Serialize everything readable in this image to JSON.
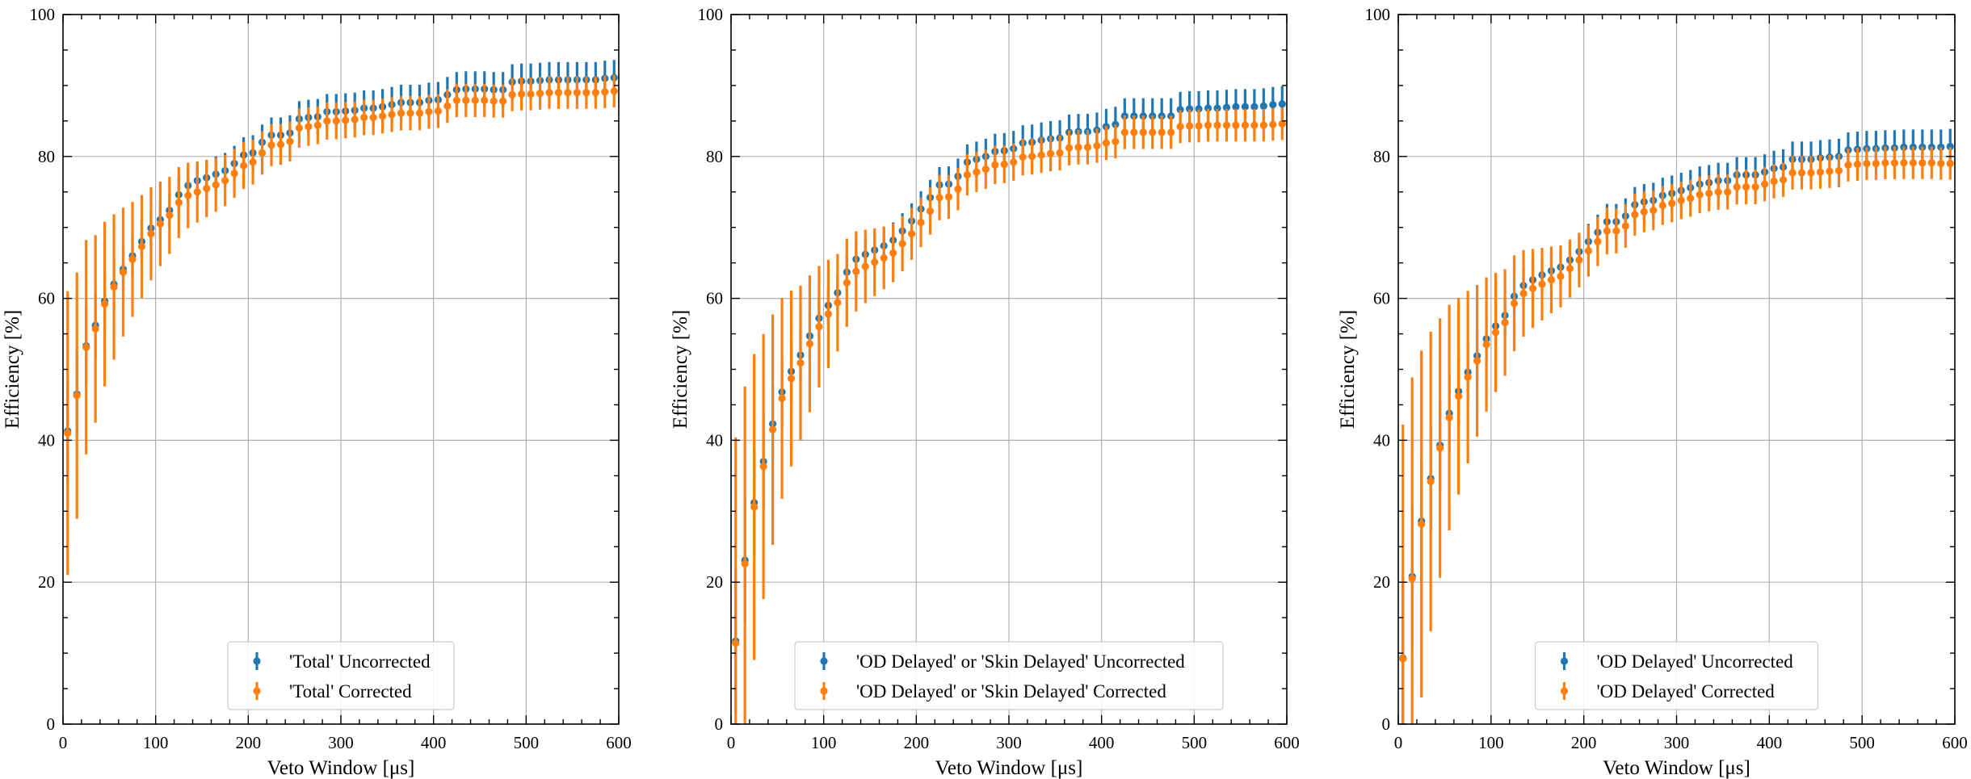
{
  "chart_data": [
    {
      "type": "scatter",
      "xlabel": "Veto Window [μs]",
      "ylabel": "Efficiency [%]",
      "xlim": [
        0,
        600
      ],
      "ylim": [
        0,
        100
      ],
      "xticks": [
        0,
        100,
        200,
        300,
        400,
        500,
        600
      ],
      "yticks": [
        0,
        20,
        40,
        60,
        80,
        100
      ],
      "grid": true,
      "legend_position": "bottom-center",
      "x": [
        5,
        15,
        25,
        35,
        45,
        55,
        65,
        75,
        85,
        95,
        105,
        115,
        125,
        135,
        145,
        155,
        165,
        175,
        185,
        195,
        205,
        215,
        225,
        235,
        245,
        255,
        265,
        275,
        285,
        295,
        305,
        315,
        325,
        335,
        345,
        355,
        365,
        375,
        385,
        395,
        405,
        415,
        425,
        435,
        445,
        455,
        465,
        475,
        485,
        495,
        505,
        515,
        525,
        535,
        545,
        555,
        565,
        575,
        585,
        595
      ],
      "series": [
        {
          "name": "'Total' Uncorrected",
          "color": "#1f77b4",
          "values": [
            41.3,
            46.5,
            53.3,
            56.2,
            59.6,
            62.0,
            64.1,
            66.0,
            68.0,
            69.9,
            71.1,
            72.4,
            74.6,
            75.9,
            76.6,
            77.0,
            77.5,
            78.0,
            79.0,
            80.2,
            80.5,
            82.0,
            83.0,
            83.0,
            83.3,
            85.3,
            85.5,
            85.6,
            86.3,
            86.3,
            86.4,
            86.5,
            86.8,
            86.8,
            87.0,
            87.3,
            87.6,
            87.6,
            87.6,
            87.9,
            88.0,
            88.7,
            89.4,
            89.5,
            89.5,
            89.5,
            89.4,
            89.4,
            90.5,
            90.6,
            90.6,
            90.7,
            90.8,
            90.8,
            90.8,
            90.8,
            90.8,
            90.8,
            91.0,
            91.1
          ]
        },
        {
          "name": "'Total' Corrected",
          "color": "#ff7f0e",
          "values": [
            41.0,
            46.3,
            53.1,
            55.7,
            59.2,
            61.6,
            63.7,
            65.5,
            67.3,
            69.1,
            70.5,
            71.7,
            73.5,
            74.5,
            75.0,
            75.5,
            76.0,
            76.6,
            77.6,
            78.7,
            79.2,
            80.5,
            81.6,
            81.7,
            82.1,
            84.0,
            84.2,
            84.4,
            85.0,
            85.0,
            85.1,
            85.2,
            85.5,
            85.5,
            85.7,
            85.9,
            86.1,
            86.1,
            86.1,
            86.3,
            86.4,
            87.1,
            87.9,
            87.9,
            87.9,
            87.9,
            87.8,
            87.8,
            88.7,
            88.8,
            88.8,
            88.9,
            89.0,
            89.0,
            89.0,
            89.0,
            89.0,
            89.0,
            89.1,
            89.2
          ]
        }
      ],
      "legend": [
        "'Total' Uncorrected",
        "'Total' Corrected"
      ]
    },
    {
      "type": "scatter",
      "xlabel": "Veto Window [μs]",
      "ylabel": "Efficiency [%]",
      "xlim": [
        0,
        600
      ],
      "ylim": [
        0,
        100
      ],
      "xticks": [
        0,
        100,
        200,
        300,
        400,
        500,
        600
      ],
      "yticks": [
        0,
        20,
        40,
        60,
        80,
        100
      ],
      "grid": true,
      "legend_position": "bottom-center",
      "x": [
        5,
        15,
        25,
        35,
        45,
        55,
        65,
        75,
        85,
        95,
        105,
        115,
        125,
        135,
        145,
        155,
        165,
        175,
        185,
        195,
        205,
        215,
        225,
        235,
        245,
        255,
        265,
        275,
        285,
        295,
        305,
        315,
        325,
        335,
        345,
        355,
        365,
        375,
        385,
        395,
        405,
        415,
        425,
        435,
        445,
        455,
        465,
        475,
        485,
        495,
        505,
        515,
        525,
        535,
        545,
        555,
        565,
        575,
        585,
        595
      ],
      "series": [
        {
          "name": "'OD Delayed' or 'Skin Delayed' Uncorrected",
          "color": "#1f77b4",
          "values": [
            11.7,
            23.1,
            31.2,
            37.0,
            42.3,
            46.8,
            49.7,
            52.0,
            54.7,
            57.2,
            59.0,
            60.8,
            63.7,
            65.5,
            66.2,
            66.8,
            67.4,
            68.2,
            69.5,
            70.9,
            72.6,
            74.2,
            76.0,
            76.1,
            77.2,
            79.2,
            79.6,
            80.0,
            80.7,
            80.8,
            81.1,
            81.9,
            82.0,
            82.3,
            82.5,
            82.6,
            83.4,
            83.5,
            83.5,
            83.7,
            84.2,
            84.5,
            85.7,
            85.7,
            85.7,
            85.7,
            85.7,
            85.7,
            86.6,
            86.7,
            86.7,
            86.8,
            86.8,
            86.9,
            87.0,
            87.0,
            87.0,
            87.1,
            87.3,
            87.4
          ]
        },
        {
          "name": "'OD Delayed' or 'Skin Delayed' Corrected",
          "color": "#ff7f0e",
          "values": [
            11.4,
            22.6,
            30.6,
            36.3,
            41.5,
            45.9,
            48.7,
            50.9,
            53.6,
            56.0,
            57.8,
            59.4,
            62.2,
            63.8,
            64.5,
            65.1,
            65.7,
            66.4,
            67.7,
            69.1,
            70.7,
            72.3,
            74.2,
            74.3,
            75.4,
            77.4,
            77.8,
            78.2,
            78.8,
            78.9,
            79.2,
            79.9,
            80.0,
            80.2,
            80.4,
            80.5,
            81.2,
            81.3,
            81.3,
            81.5,
            81.9,
            82.1,
            83.4,
            83.4,
            83.4,
            83.4,
            83.4,
            83.4,
            84.2,
            84.3,
            84.3,
            84.4,
            84.4,
            84.4,
            84.4,
            84.4,
            84.4,
            84.4,
            84.5,
            84.6
          ]
        }
      ],
      "legend": [
        "'OD Delayed' or 'Skin Delayed' Uncorrected",
        "'OD Delayed' or 'Skin Delayed' Corrected"
      ]
    },
    {
      "type": "scatter",
      "xlabel": "Veto Window [μs]",
      "ylabel": "Efficiency [%]",
      "xlim": [
        0,
        600
      ],
      "ylim": [
        0,
        100
      ],
      "xticks": [
        0,
        100,
        200,
        300,
        400,
        500,
        600
      ],
      "yticks": [
        0,
        20,
        40,
        60,
        80,
        100
      ],
      "grid": true,
      "legend_position": "bottom-center",
      "x": [
        5,
        15,
        25,
        35,
        45,
        55,
        65,
        75,
        85,
        95,
        105,
        115,
        125,
        135,
        145,
        155,
        165,
        175,
        185,
        195,
        205,
        215,
        225,
        235,
        245,
        255,
        265,
        275,
        285,
        295,
        305,
        315,
        325,
        335,
        345,
        355,
        365,
        375,
        385,
        395,
        405,
        415,
        425,
        435,
        445,
        455,
        465,
        475,
        485,
        495,
        505,
        515,
        525,
        535,
        545,
        555,
        565,
        575,
        585,
        595
      ],
      "series": [
        {
          "name": "'OD Delayed' Uncorrected",
          "color": "#1f77b4",
          "values": [
            9.3,
            20.8,
            28.6,
            34.6,
            39.3,
            43.8,
            46.9,
            49.6,
            51.9,
            54.3,
            56.1,
            57.6,
            60.3,
            61.8,
            62.6,
            63.3,
            63.9,
            64.4,
            65.4,
            66.6,
            68.0,
            69.3,
            70.8,
            70.8,
            71.6,
            73.2,
            73.6,
            73.8,
            74.5,
            74.8,
            75.2,
            75.6,
            76.1,
            76.3,
            76.6,
            76.6,
            77.4,
            77.4,
            77.4,
            77.8,
            78.3,
            78.5,
            79.6,
            79.6,
            79.6,
            79.8,
            79.9,
            80.0,
            80.9,
            81.0,
            81.1,
            81.1,
            81.2,
            81.2,
            81.3,
            81.3,
            81.3,
            81.3,
            81.3,
            81.4
          ]
        },
        {
          "name": "'OD Delayed' Corrected",
          "color": "#ff7f0e",
          "values": [
            9.2,
            20.5,
            28.2,
            34.2,
            38.9,
            43.2,
            46.2,
            48.9,
            51.2,
            53.5,
            55.2,
            56.6,
            59.3,
            60.7,
            61.4,
            62.0,
            62.6,
            63.1,
            64.2,
            65.4,
            66.7,
            68.0,
            69.5,
            69.5,
            70.2,
            71.8,
            72.2,
            72.4,
            73.1,
            73.4,
            73.8,
            74.1,
            74.6,
            74.8,
            75.0,
            75.0,
            75.7,
            75.7,
            75.7,
            76.1,
            76.5,
            76.7,
            77.7,
            77.7,
            77.7,
            77.8,
            77.9,
            78.0,
            78.8,
            78.9,
            79.0,
            79.0,
            79.1,
            79.1,
            79.1,
            79.1,
            79.1,
            79.1,
            79.0,
            79.0
          ]
        }
      ],
      "legend": [
        "'OD Delayed' Uncorrected",
        "'OD Delayed' Corrected"
      ]
    }
  ]
}
